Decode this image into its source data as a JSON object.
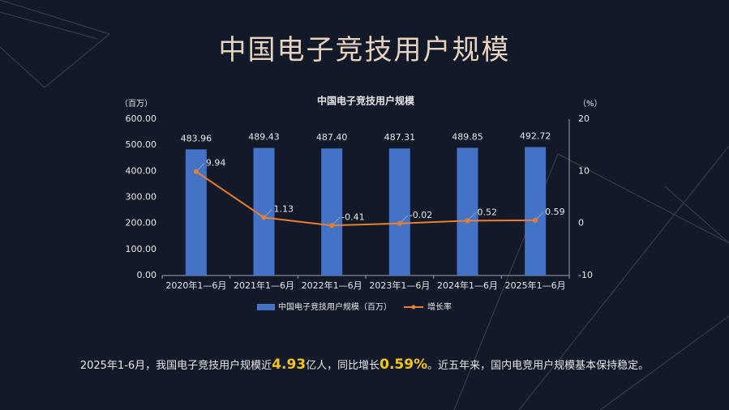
{
  "page": {
    "title": "中国电子竞技用户规模",
    "footer": {
      "part1": "2025年1-6月，我国电子竞技用户规模近",
      "highlight1": "4.93",
      "part2": "亿人，同比增长",
      "highlight2": "0.59%",
      "part3": "。近五年来，国内电竞用户规模基本保持稳定。"
    }
  },
  "colors": {
    "bar": "#4472c4",
    "line": "#ed7d31",
    "title": "#e8d3bf",
    "text": "#e6e6e6",
    "highlight": "#f5c518",
    "background": "#121a2a"
  },
  "chart_data": {
    "type": "bar",
    "title": "中国电子竞技用户规模",
    "categories": [
      "2020年1—6月",
      "2021年1—6月",
      "2022年1—6月",
      "2023年1—6月",
      "2024年1—6月",
      "2025年1—6月"
    ],
    "left_unit": "（百万）",
    "right_unit": "（%）",
    "ylim": [
      0,
      600
    ],
    "y_ticks": [
      "0.00",
      "100.00",
      "200.00",
      "300.00",
      "400.00",
      "500.00",
      "600.00"
    ],
    "y2lim": [
      -10,
      20
    ],
    "y2_ticks": [
      "-10",
      "0",
      "10",
      "20"
    ],
    "series": [
      {
        "name": "中国电子竞技用户规模（百万）",
        "type": "bar",
        "values": [
          483.96,
          489.43,
          487.4,
          487.31,
          489.85,
          492.72
        ],
        "labels": [
          "483.96",
          "489.43",
          "487.40",
          "487.31",
          "489.85",
          "492.72"
        ]
      },
      {
        "name": "增长率",
        "type": "line",
        "axis": "right",
        "values": [
          9.94,
          1.13,
          -0.41,
          -0.02,
          0.52,
          0.59
        ],
        "labels": [
          "9.94",
          "1.13",
          "-0.41",
          "-0.02",
          "0.52",
          "0.59"
        ]
      }
    ],
    "grid": false,
    "legend": "bottom"
  }
}
